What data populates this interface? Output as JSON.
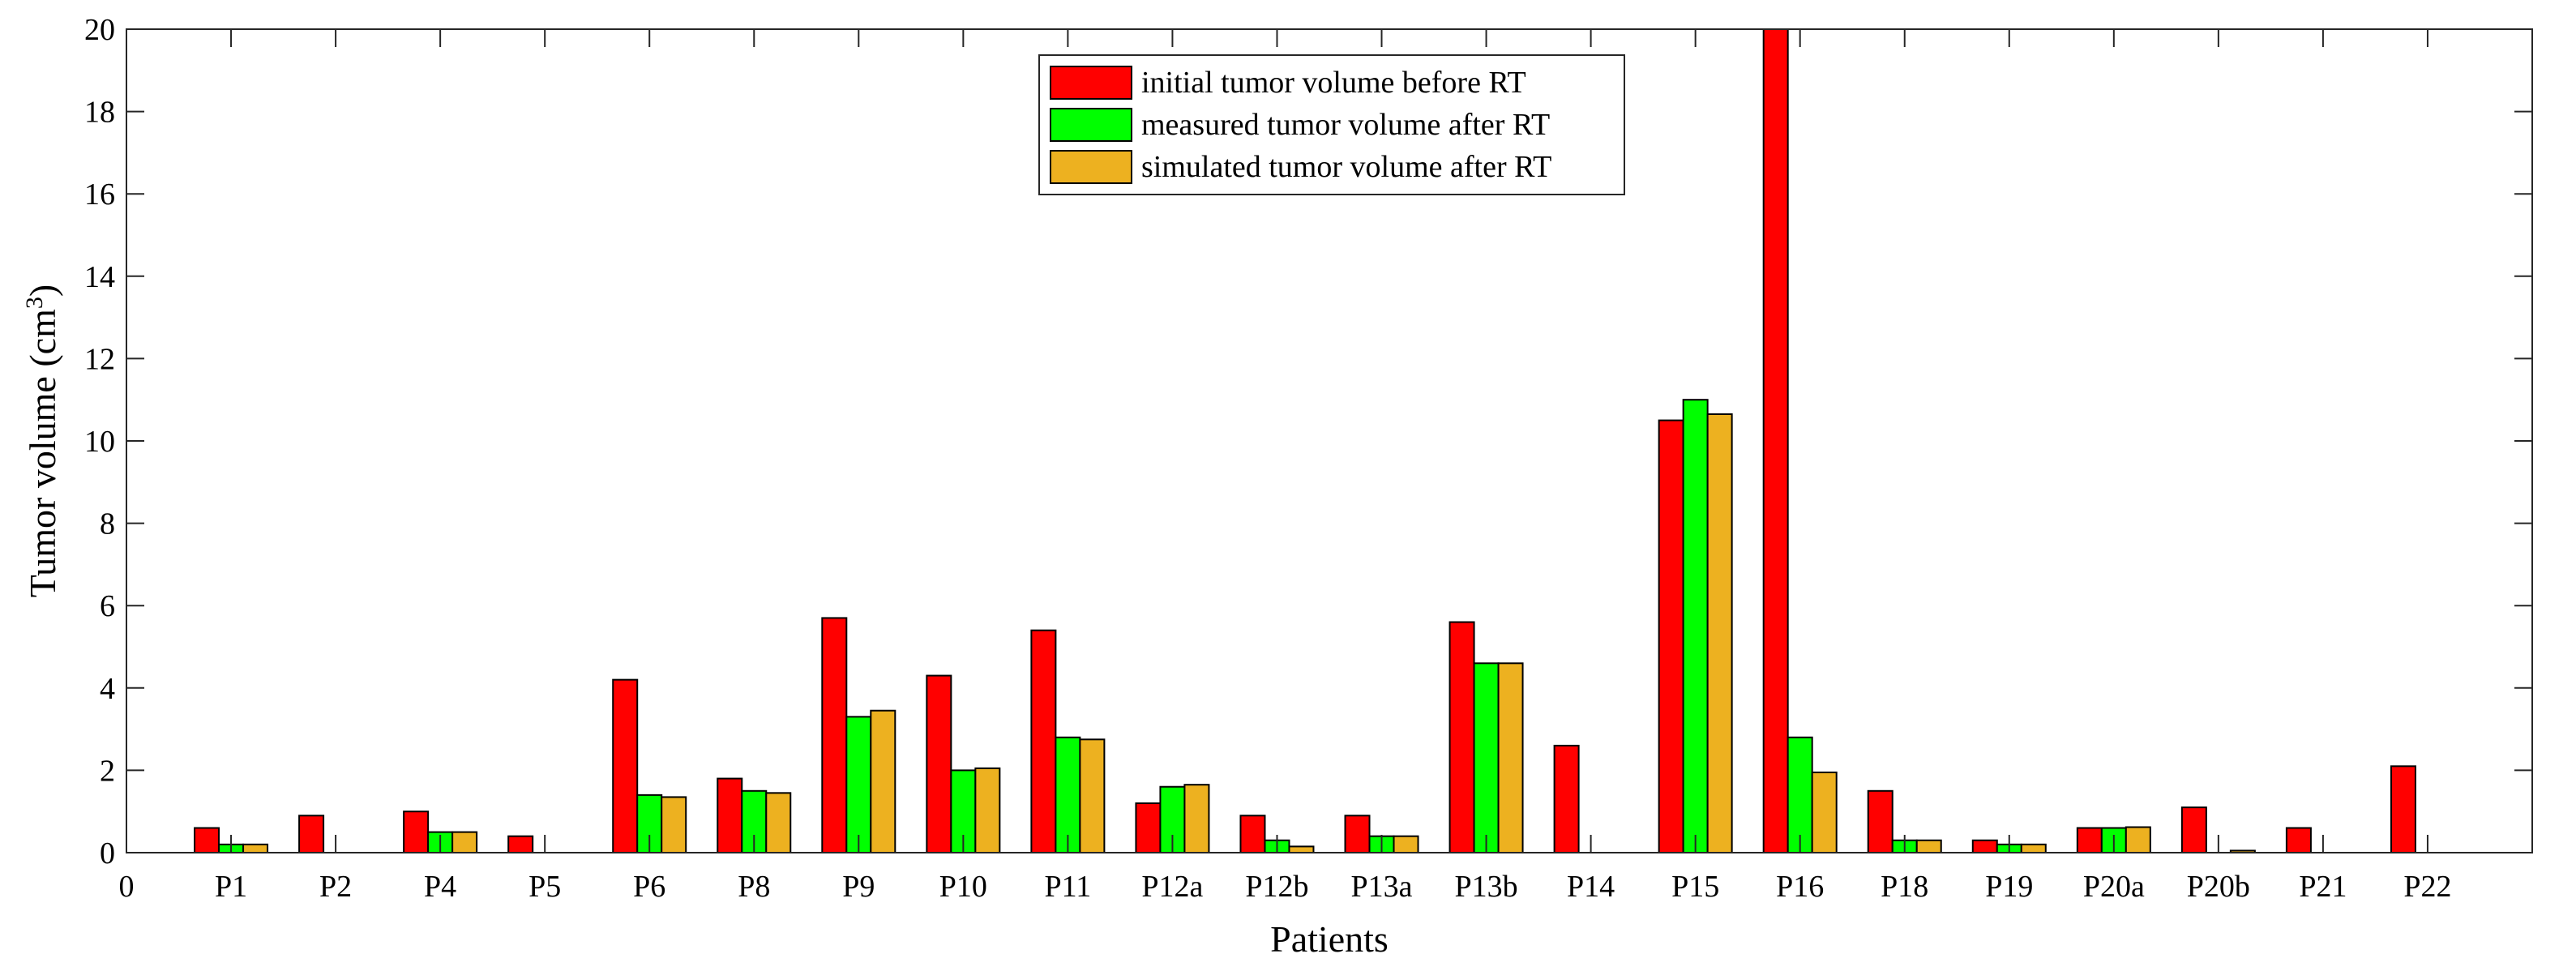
{
  "chart_data": {
    "type": "bar",
    "title": "",
    "xlabel": "Patients",
    "ylabel_main": "Tumor volume (cm",
    "ylabel_sup": "3",
    "ylabel_close": ")",
    "ylim": [
      0,
      20
    ],
    "y_ticks": [
      0,
      2,
      4,
      6,
      8,
      10,
      12,
      14,
      16,
      18,
      20
    ],
    "x_zero_label": "0",
    "grid": false,
    "legend_position": "top-center",
    "categories": [
      "P1",
      "P2",
      "P4",
      "P5",
      "P6",
      "P8",
      "P9",
      "P10",
      "P11",
      "P12a",
      "P12b",
      "P13a",
      "P13b",
      "P14",
      "P15",
      "P16",
      "P18",
      "P19",
      "P20a",
      "P20b",
      "P21",
      "P22"
    ],
    "series": [
      {
        "name": "initial tumor volume before RT",
        "color": "#ff0000",
        "values": [
          0.6,
          0.9,
          1.0,
          0.4,
          4.2,
          1.8,
          5.7,
          4.3,
          5.4,
          1.2,
          0.9,
          0.9,
          5.6,
          2.6,
          10.5,
          20.0,
          1.5,
          0.3,
          0.6,
          1.1,
          0.6,
          2.1
        ]
      },
      {
        "name": "measured tumor volume after RT",
        "color": "#00ff00",
        "values": [
          0.2,
          0,
          0.5,
          0,
          1.4,
          1.5,
          3.3,
          2.0,
          2.8,
          1.6,
          0.3,
          0.4,
          4.6,
          0,
          11.0,
          2.8,
          0.3,
          0.2,
          0.6,
          0,
          0,
          0
        ]
      },
      {
        "name": "simulated tumor volume after RT",
        "color": "#edb120",
        "values": [
          0.2,
          0,
          0.5,
          0,
          1.35,
          1.45,
          3.45,
          2.05,
          2.75,
          1.65,
          0.15,
          0.4,
          4.6,
          0,
          10.65,
          1.95,
          0.3,
          0.2,
          0.62,
          0.05,
          0,
          0
        ]
      }
    ]
  }
}
